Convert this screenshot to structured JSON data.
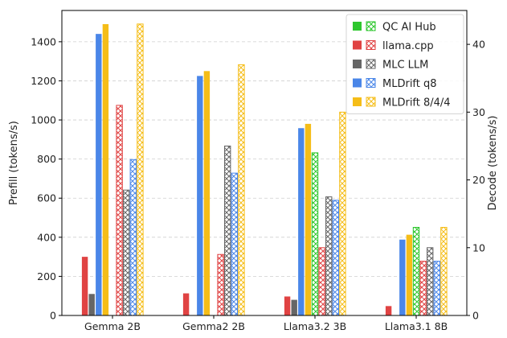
{
  "chart_data": {
    "type": "bar",
    "categories": [
      "Gemma 2B",
      "Gemma2 2B",
      "Llama3.2 3B",
      "Llama3.1 8B"
    ],
    "ylabel_left": "Prefill (tokens/s)",
    "ylabel_right": "Decode (tokens/s)",
    "ylim_left": [
      0,
      1560
    ],
    "ylim_right": [
      0,
      45
    ],
    "yticks_left": [
      0,
      200,
      400,
      600,
      800,
      1000,
      1200,
      1400
    ],
    "yticks_right": [
      0,
      10,
      20,
      30,
      40
    ],
    "grid": true,
    "legend_position": "top-right",
    "series": [
      {
        "name": "QC AI Hub",
        "color": "#2ec72e",
        "prefill": [
          null,
          null,
          null,
          null
        ],
        "decode": [
          null,
          null,
          24,
          13
        ]
      },
      {
        "name": "llama.cpp",
        "color": "#e04343",
        "prefill": [
          300,
          113,
          97,
          48
        ],
        "decode": [
          31,
          9,
          10,
          8
        ]
      },
      {
        "name": "MLC LLM",
        "color": "#666666",
        "prefill": [
          110,
          null,
          80,
          null
        ],
        "decode": [
          18.5,
          25,
          17.5,
          10
        ]
      },
      {
        "name": "MLDrift q8",
        "color": "#4a86e8",
        "prefill": [
          1440,
          1225,
          958,
          388
        ],
        "decode": [
          23,
          21,
          17,
          8
        ]
      },
      {
        "name": "MLDrift 8/4/4",
        "color": "#f5bd18",
        "prefill": [
          1490,
          1250,
          980,
          413
        ],
        "decode": [
          43,
          37,
          30,
          13
        ]
      }
    ]
  }
}
